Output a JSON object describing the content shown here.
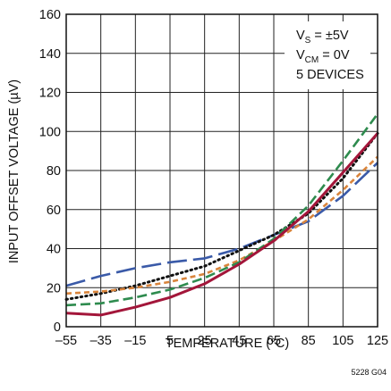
{
  "chart_data": {
    "type": "line",
    "title": "",
    "xlabel": "TEMPERATURE (°C)",
    "ylabel": "INPUT OFFSET VOLTAGE (µV)",
    "xlim": [
      -55,
      125
    ],
    "ylim": [
      0,
      160
    ],
    "x_ticks": [
      -55,
      -35,
      -15,
      5,
      25,
      45,
      65,
      85,
      105,
      125
    ],
    "y_ticks": [
      0,
      20,
      40,
      60,
      80,
      100,
      120,
      140,
      160
    ],
    "x_tick_labels": [
      "–55",
      "–35",
      "–15",
      "5",
      "25",
      "45",
      "65",
      "85",
      "105",
      "125"
    ],
    "y_tick_labels": [
      "0",
      "20",
      "40",
      "60",
      "80",
      "100",
      "120",
      "140",
      "160"
    ],
    "grid": true,
    "annotation": {
      "line1_main": "V",
      "line1_sub": "S",
      "line1_rest": " = ±5V",
      "line2_main": "V",
      "line2_sub": "CM",
      "line2_rest": " = 0V",
      "line3": "5 DEVICES"
    },
    "footnote": "5228 G04",
    "series": [
      {
        "style": "long-dash",
        "color": "#3a5aa8",
        "x": [
          -55,
          -35,
          -15,
          5,
          25,
          45,
          65,
          85,
          105,
          125
        ],
        "y": [
          21,
          26,
          30,
          33,
          35,
          40,
          47,
          54,
          67,
          84
        ]
      },
      {
        "style": "dotted",
        "color": "#111111",
        "x": [
          -55,
          -35,
          -15,
          5,
          25,
          45,
          65,
          85,
          105,
          125
        ],
        "y": [
          14,
          17,
          21,
          26,
          31,
          39,
          47,
          58,
          76,
          99
        ]
      },
      {
        "style": "short-dash",
        "color": "#d9843b",
        "x": [
          -55,
          -35,
          -15,
          5,
          25,
          45,
          65,
          85,
          105,
          125
        ],
        "y": [
          17,
          18,
          20,
          23,
          27,
          34,
          44,
          55,
          70,
          87
        ]
      },
      {
        "style": "dashed",
        "color": "#2e8b4e",
        "x": [
          -55,
          -35,
          -15,
          5,
          25,
          45,
          65,
          85,
          105,
          125
        ],
        "y": [
          11,
          12,
          15,
          19,
          25,
          33,
          45,
          62,
          85,
          109
        ]
      },
      {
        "style": "solid",
        "color": "#a3163a",
        "x": [
          -55,
          -35,
          -15,
          5,
          25,
          45,
          65,
          85,
          105,
          125
        ],
        "y": [
          7,
          6,
          10,
          15,
          22,
          32,
          44,
          59,
          79,
          99
        ]
      }
    ]
  }
}
